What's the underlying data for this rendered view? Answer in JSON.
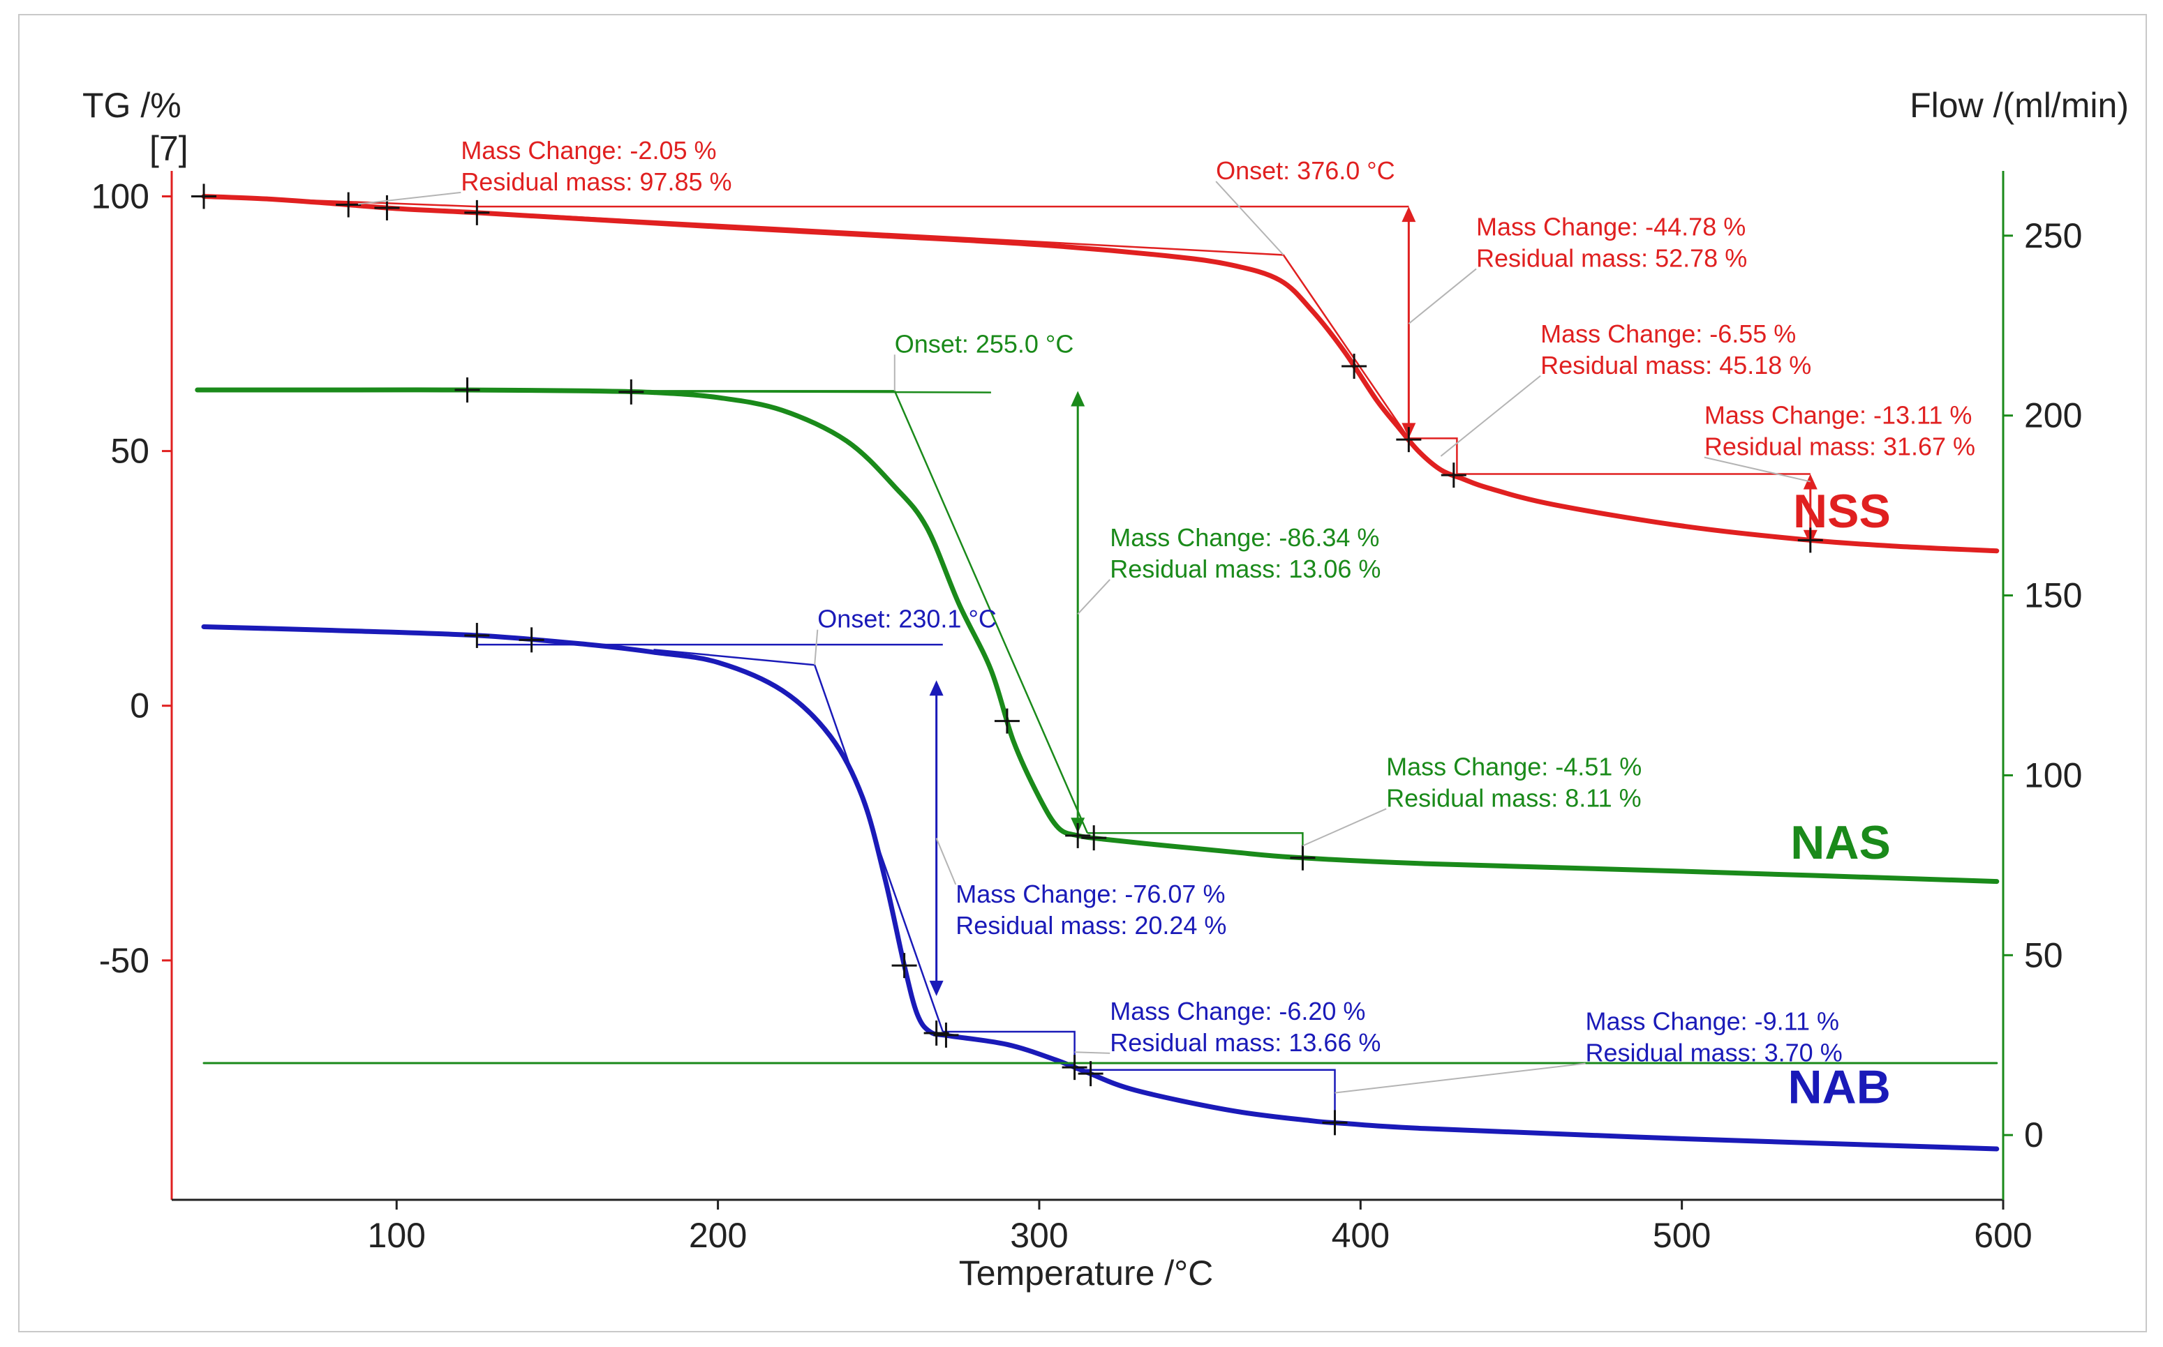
{
  "chart_data": {
    "type": "line",
    "title": "",
    "xlabel": "Temperature /°C",
    "ylabel": "TG /%",
    "ylabel_ref": "[7]",
    "y2label": "Flow /(ml/min)",
    "xlim": [
      30,
      600
    ],
    "ylim": [
      -97,
      105
    ],
    "y2lim": [
      -18,
      268
    ],
    "xticks": [
      100,
      200,
      300,
      400,
      500,
      600
    ],
    "yticks": [
      100,
      50,
      0,
      -50
    ],
    "y2ticks": [
      250,
      200,
      150,
      100,
      50,
      0
    ],
    "colors": {
      "NSS": "#e02020",
      "NAS": "#1a8a1a",
      "NAB": "#1a1ab8",
      "flow": "#1a8a1a",
      "left_axis": "#e02020",
      "right_axis": "#1a8a1a",
      "leader": "#b4b4b4"
    },
    "series": [
      {
        "name": "NSS",
        "color": "#e02020",
        "x": [
          40,
          60,
          80,
          100,
          125,
          160,
          200,
          250,
          300,
          340,
          360,
          375,
          385,
          395,
          405,
          412,
          418,
          425,
          432,
          440,
          460,
          500,
          540,
          570,
          598
        ],
        "y": [
          100,
          99.5,
          98.6,
          97.6,
          96.8,
          95.5,
          94,
          92.3,
          90.5,
          88.3,
          86.5,
          83.5,
          77.5,
          69.5,
          60,
          54.5,
          50,
          46.3,
          44.5,
          42.7,
          39.5,
          35.3,
          32.5,
          31.2,
          30.4
        ]
      },
      {
        "name": "NAS",
        "color": "#1a8a1a",
        "x": [
          38,
          80,
          120,
          160,
          180,
          200,
          220,
          240,
          255,
          265,
          275,
          285,
          292,
          300,
          306,
          312,
          320,
          340,
          360,
          380,
          420,
          500,
          598
        ],
        "y": [
          62,
          62,
          62,
          61.8,
          61.5,
          60.5,
          58,
          52,
          43,
          35,
          20,
          7,
          -7,
          -18,
          -24,
          -25.5,
          -26.2,
          -27.5,
          -28.7,
          -29.8,
          -31,
          -32.5,
          -34.5
        ]
      },
      {
        "name": "NAB",
        "color": "#1a1ab8",
        "x": [
          40,
          80,
          125,
          160,
          180,
          200,
          220,
          235,
          245,
          252,
          258,
          262,
          266,
          272,
          290,
          305,
          315,
          330,
          360,
          385,
          395,
          420,
          500,
          598
        ],
        "y": [
          15.5,
          14.8,
          13.8,
          12,
          10.5,
          8.5,
          3,
          -6,
          -18,
          -34,
          -51,
          -60.5,
          -64,
          -64.8,
          -66.5,
          -69.5,
          -72,
          -75.5,
          -79.5,
          -81.5,
          -82,
          -83,
          -85,
          -87
        ]
      },
      {
        "name": "Flow",
        "color": "#1a8a1a",
        "axis": "right",
        "x": [
          40,
          598
        ],
        "y": [
          20,
          20
        ]
      }
    ],
    "tangent_lines": [
      {
        "series": "NSS",
        "points": [
          [
            40,
            100
          ],
          [
            125,
            98
          ]
        ],
        "note": "initial baseline"
      },
      {
        "series": "NSS",
        "points": [
          [
            125,
            98
          ],
          [
            415,
            98
          ]
        ]
      },
      {
        "series": "NSS",
        "points": [
          [
            125,
            97
          ],
          [
            376,
            88.5
          ],
          [
            415,
            52.5
          ]
        ]
      },
      {
        "series": "NSS",
        "points": [
          [
            415,
            52.5
          ],
          [
            430,
            52.5
          ],
          [
            430,
            45.5
          ],
          [
            540,
            45.5
          ]
        ]
      },
      {
        "series": "NAS",
        "points": [
          [
            38,
            62
          ],
          [
            285,
            61.5
          ]
        ]
      },
      {
        "series": "NAS",
        "points": [
          [
            150,
            61.8
          ],
          [
            255,
            61.8
          ],
          [
            315,
            -25
          ]
        ]
      },
      {
        "series": "NAS",
        "points": [
          [
            315,
            -25
          ],
          [
            382,
            -25
          ],
          [
            382,
            -30
          ]
        ]
      },
      {
        "series": "NAB",
        "points": [
          [
            125,
            12
          ],
          [
            270,
            12
          ]
        ]
      },
      {
        "series": "NAB",
        "points": [
          [
            180,
            11
          ],
          [
            230.1,
            8
          ],
          [
            270,
            -64
          ]
        ]
      },
      {
        "series": "NAB",
        "points": [
          [
            270,
            -64
          ],
          [
            311,
            -64
          ],
          [
            311,
            -71.5
          ],
          [
            392,
            -71.5
          ],
          [
            392,
            -82
          ]
        ]
      }
    ],
    "arrows": [
      {
        "series": "NSS",
        "x": 415,
        "y1": 98,
        "y2": 52.5
      },
      {
        "series": "NSS",
        "x": 540,
        "y1": 45.5,
        "y2": 31.5
      },
      {
        "series": "NAS",
        "x": 312,
        "y1": 61.8,
        "y2": -25
      },
      {
        "series": "NAB",
        "x": 268,
        "y1": 5,
        "y2": -57
      }
    ],
    "cross_markers": [
      {
        "series": "NSS",
        "x": [
          40,
          85,
          97,
          125,
          398,
          415,
          429,
          540
        ]
      },
      {
        "series": "NAS",
        "x": [
          122,
          173,
          290,
          312,
          317,
          382
        ]
      },
      {
        "series": "NAB",
        "x": [
          125,
          142,
          258,
          268,
          271,
          311,
          316,
          392
        ]
      }
    ],
    "annotations": [
      {
        "series": "NSS",
        "lines": [
          "Mass Change:   -2.05 %",
          "Residual mass:  97.85 %"
        ],
        "tx": 120,
        "ty": 112,
        "lx": 88,
        "ly": 98.5
      },
      {
        "series": "NSS",
        "lines": [
          "Onset: 376.0 °C"
        ],
        "tx": 355,
        "ty": 108,
        "lx": 376,
        "ly": 88.5
      },
      {
        "series": "NSS",
        "lines": [
          "Mass Change:   -44.78 %",
          "Residual mass:   52.78 %"
        ],
        "tx": 436,
        "ty": 97,
        "lx": 415,
        "ly": 75
      },
      {
        "series": "NSS",
        "lines": [
          "Mass Change:    -6.55 %",
          "Residual mass:  45.18 %"
        ],
        "tx": 456,
        "ty": 76,
        "lx": 425,
        "ly": 49
      },
      {
        "series": "NSS",
        "lines": [
          "Mass Change:   -13.11 %",
          "Residual mass:    31.67 %"
        ],
        "tx": 507,
        "ty": 60,
        "lx": 540,
        "ly": 44
      },
      {
        "series": "NAS",
        "lines": [
          "Onset: 255.0 °C"
        ],
        "tx": 255,
        "ty": 74,
        "lx": 255,
        "ly": 61.8
      },
      {
        "series": "NAS",
        "lines": [
          "Mass Change:   -86.34 %",
          "Residual mass:   13.06 %"
        ],
        "tx": 322,
        "ty": 36,
        "lx": 312,
        "ly": 18
      },
      {
        "series": "NAS",
        "lines": [
          "Mass Change:    -4.51 %",
          "Residual mass:    8.11 %"
        ],
        "tx": 408,
        "ty": -9,
        "lx": 382,
        "ly": -27.5
      },
      {
        "series": "NAB",
        "lines": [
          "Onset: 230.1 °C"
        ],
        "tx": 231,
        "ty": 20,
        "lx": 230.1,
        "ly": 8
      },
      {
        "series": "NAB",
        "lines": [
          "Mass Change:    -76.07 %",
          "Residual mass:    20.24 %"
        ],
        "tx": 274,
        "ty": -34,
        "lx": 268,
        "ly": -26
      },
      {
        "series": "NAB",
        "lines": [
          "Mass Change:    -6.20 %",
          "Residual mass:  13.66 %"
        ],
        "tx": 322,
        "ty": -57,
        "lx": 311,
        "ly": -68
      },
      {
        "series": "NAB",
        "lines": [
          "Mass Change:    -9.11 %",
          "Residual mass:    3.70 %"
        ],
        "tx": 470,
        "ty": -59,
        "lx": 392,
        "ly": -76
      }
    ],
    "series_labels": [
      {
        "name": "NSS",
        "x": 565,
        "y": 35
      },
      {
        "name": "NAS",
        "x": 565,
        "y": -30
      },
      {
        "name": "NAB",
        "x": 565,
        "y": -78
      }
    ]
  }
}
